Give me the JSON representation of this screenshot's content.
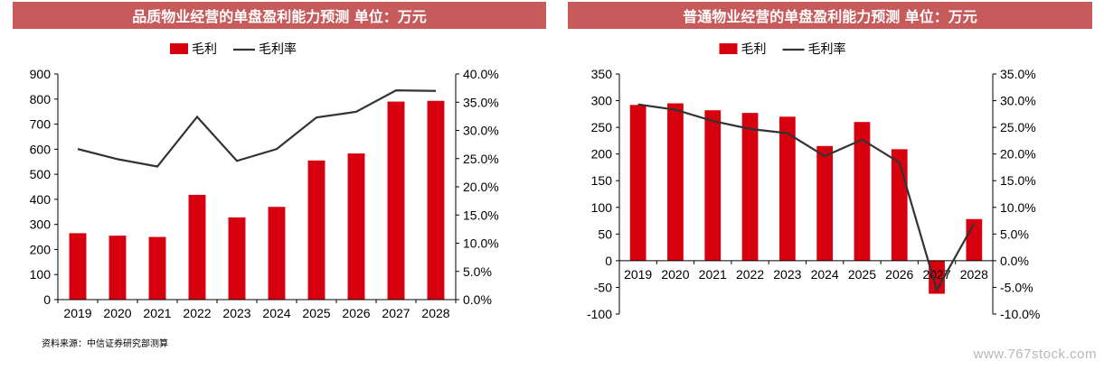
{
  "chart_data": [
    {
      "type": "bar",
      "title": "品质物业经营的单盘盈利能力预测 单位：万元",
      "categories": [
        "2019",
        "2020",
        "2021",
        "2022",
        "2023",
        "2024",
        "2025",
        "2026",
        "2027",
        "2028"
      ],
      "series": [
        {
          "name": "毛利",
          "type": "bar",
          "axis": "left",
          "color": "#d7000f",
          "values": [
            265,
            255,
            250,
            418,
            328,
            370,
            555,
            583,
            790,
            793
          ]
        },
        {
          "name": "毛利率",
          "type": "line",
          "axis": "right",
          "color": "#333333",
          "values": [
            26.7,
            24.9,
            23.6,
            32.4,
            24.6,
            26.7,
            32.3,
            33.3,
            37.1,
            37.0
          ]
        }
      ],
      "ylim": [
        0,
        900
      ],
      "y_ticks": [
        "0",
        "100",
        "200",
        "300",
        "400",
        "500",
        "600",
        "700",
        "800",
        "900"
      ],
      "y2lim": [
        0,
        40
      ],
      "y2_ticks": [
        "0.0%",
        "5.0%",
        "10.0%",
        "15.0%",
        "20.0%",
        "25.0%",
        "30.0%",
        "35.0%",
        "40.0%"
      ],
      "legend_position": "top-center",
      "grid": false
    },
    {
      "type": "bar",
      "title": "普通物业经营的单盘盈利能力预测 单位：万元",
      "categories": [
        "2019",
        "2020",
        "2021",
        "2022",
        "2023",
        "2024",
        "2025",
        "2026",
        "2027",
        "2028"
      ],
      "series": [
        {
          "name": "毛利",
          "type": "bar",
          "axis": "left",
          "color": "#d7000f",
          "values": [
            292,
            295,
            282,
            277,
            270,
            215,
            260,
            209,
            -62,
            78
          ]
        },
        {
          "name": "毛利率",
          "type": "line",
          "axis": "right",
          "color": "#333333",
          "values": [
            29.3,
            28.3,
            26.2,
            24.7,
            23.9,
            19.6,
            22.7,
            18.4,
            -5.5,
            7.0
          ]
        }
      ],
      "ylim": [
        -100,
        350
      ],
      "y_ticks": [
        "-100",
        "-50",
        "0",
        "50",
        "100",
        "150",
        "200",
        "250",
        "300",
        "350"
      ],
      "y2lim": [
        -10,
        35
      ],
      "y2_ticks": [
        "-10.0%",
        "-5.0%",
        "0.0%",
        "5.0%",
        "10.0%",
        "15.0%",
        "20.0%",
        "25.0%",
        "30.0%",
        "35.0%"
      ],
      "legend_position": "top-center",
      "grid": false
    }
  ],
  "source_note": "资料来源：中信证券研究部测算",
  "watermark": "www.767stock.com"
}
